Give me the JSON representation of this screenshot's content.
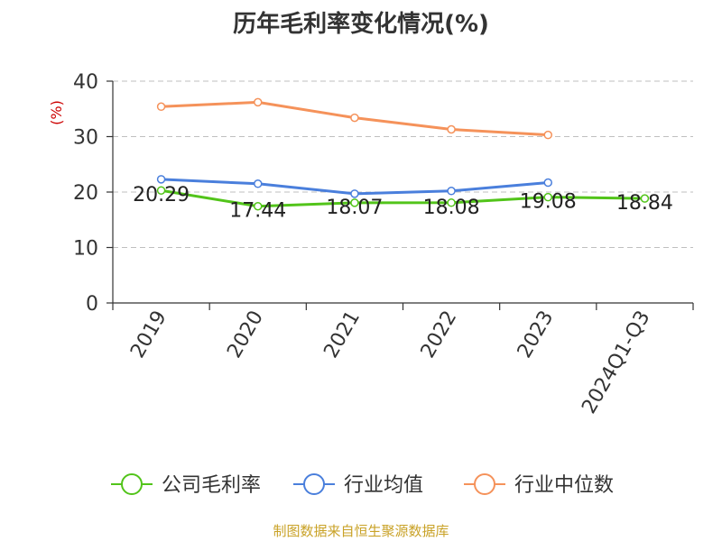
{
  "chart_data": {
    "type": "line",
    "title": "历年毛利率变化情况(%)",
    "ylabel": "(%)",
    "xlabel": "",
    "categories": [
      "2019",
      "2020",
      "2021",
      "2022",
      "2023",
      "2024Q1-Q3"
    ],
    "ylim": [
      0,
      40
    ],
    "yticks": [
      0,
      10,
      20,
      30,
      40
    ],
    "grid": true,
    "legend_position": "bottom",
    "series": [
      {
        "name": "公司毛利率",
        "color": "#52c41a",
        "values": [
          20.29,
          17.44,
          18.07,
          18.08,
          19.08,
          18.84
        ],
        "labels": [
          "20.29",
          "17.44",
          "18.07",
          "18.08",
          "19.08",
          "18.84"
        ]
      },
      {
        "name": "行业均值",
        "color": "#4a7fdc",
        "values": [
          22.3,
          21.5,
          19.7,
          20.2,
          21.7,
          null
        ]
      },
      {
        "name": "行业中位数",
        "color": "#f5925a",
        "values": [
          35.4,
          36.2,
          33.4,
          31.3,
          30.3,
          null
        ]
      }
    ]
  },
  "source_note": "制图数据来自恒生聚源数据库",
  "colors": {
    "ylabel": "#cc0000",
    "source": "#c9a227"
  }
}
